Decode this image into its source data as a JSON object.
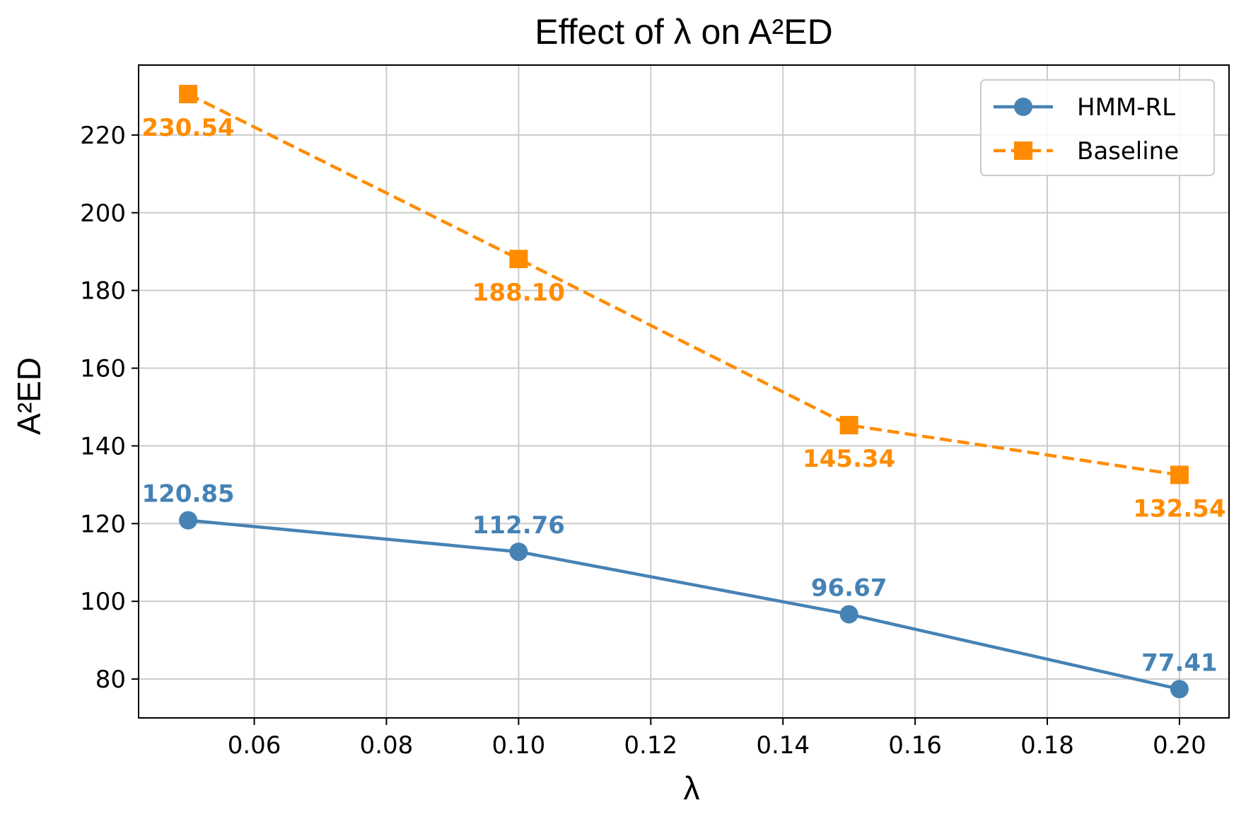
{
  "chart_data": {
    "type": "line",
    "title": "Effect of λ on A²ED",
    "xlabel": "λ",
    "ylabel": "A²ED",
    "x": [
      0.05,
      0.1,
      0.15,
      0.2
    ],
    "xlim": [
      0.0425,
      0.2075
    ],
    "ylim": [
      70,
      238
    ],
    "xticks": [
      0.06,
      0.08,
      0.1,
      0.12,
      0.14,
      0.16,
      0.18,
      0.2
    ],
    "xtick_labels": [
      "0.06",
      "0.08",
      "0.10",
      "0.12",
      "0.14",
      "0.16",
      "0.18",
      "0.20"
    ],
    "yticks": [
      80,
      100,
      120,
      140,
      160,
      180,
      200,
      220
    ],
    "ytick_labels": [
      "80",
      "100",
      "120",
      "140",
      "160",
      "180",
      "200",
      "220"
    ],
    "grid": true,
    "legend_position": "top-right",
    "series": [
      {
        "name": "HMM-RL",
        "values": [
          120.85,
          112.76,
          96.67,
          77.41
        ],
        "labels": [
          "120.85",
          "112.76",
          "96.67",
          "77.41"
        ],
        "color": "#4682b4",
        "marker": "circle",
        "linestyle": "solid",
        "label_position": "above"
      },
      {
        "name": "Baseline",
        "values": [
          230.54,
          188.1,
          145.34,
          132.54
        ],
        "labels": [
          "230.54",
          "188.10",
          "145.34",
          "132.54"
        ],
        "color": "#ff8c00",
        "marker": "square",
        "linestyle": "dashed",
        "label_position": "below"
      }
    ]
  }
}
